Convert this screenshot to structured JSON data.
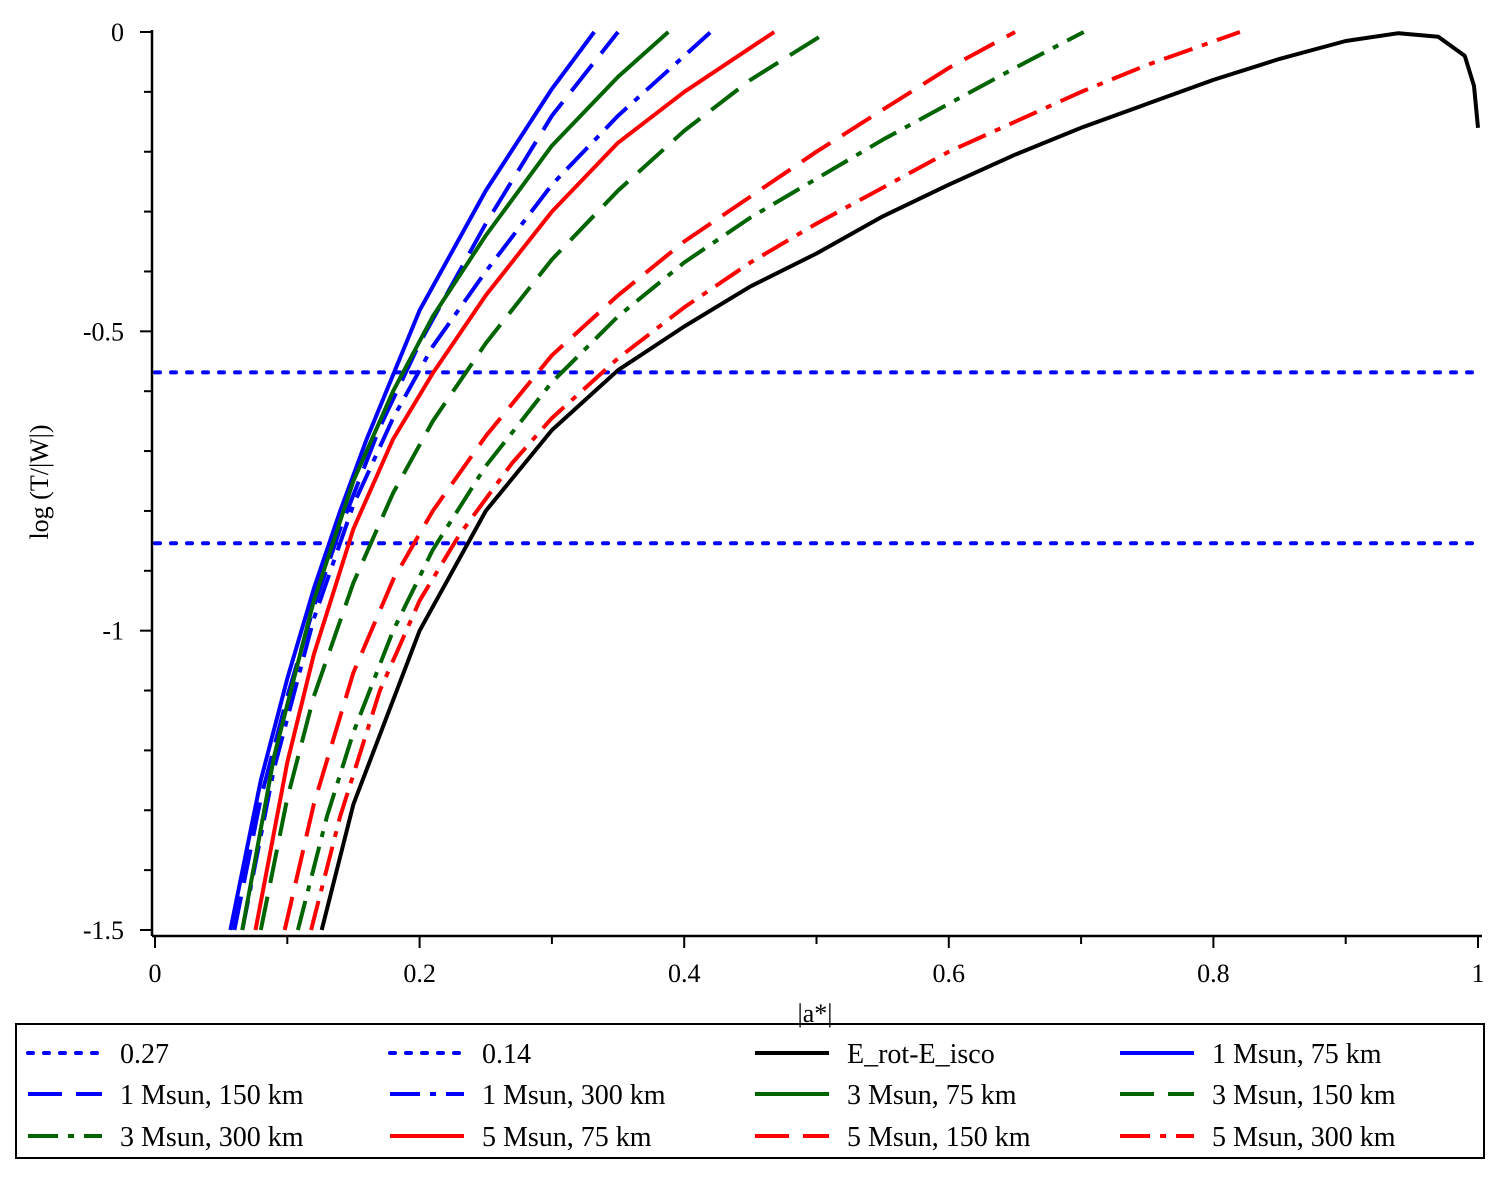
{
  "chart_data": {
    "type": "line",
    "title": "",
    "xlabel": "|a*|",
    "ylabel": "log (T/|W|)",
    "xlim": [
      0,
      1
    ],
    "ylim": [
      -1.5,
      0
    ],
    "x_ticks": [
      0,
      0.2,
      0.4,
      0.6,
      0.8,
      1
    ],
    "x_tick_labels": [
      "0",
      "0.2",
      "0.4",
      "0.6",
      "0.8",
      "1"
    ],
    "y_ticks": [
      0,
      -0.5,
      -1,
      -1.5
    ],
    "y_tick_labels": [
      "0",
      "-0.5",
      "-1",
      "-1.5"
    ],
    "grid": false,
    "legend_position": "bottom",
    "series": [
      {
        "name": "0.27",
        "color": "#0000ff",
        "dash": "dot",
        "x": [
          0,
          1
        ],
        "y": [
          -0.5686,
          -0.5686
        ]
      },
      {
        "name": "0.14",
        "color": "#0000ff",
        "dash": "dot",
        "x": [
          0,
          1
        ],
        "y": [
          -0.8539,
          -0.8539
        ]
      },
      {
        "name": "E_rot-E_isco",
        "color": "#000000",
        "dash": "solid",
        "x": [
          0.126,
          0.15,
          0.2,
          0.25,
          0.3,
          0.35,
          0.4,
          0.45,
          0.5,
          0.55,
          0.6,
          0.65,
          0.7,
          0.75,
          0.8,
          0.85,
          0.9,
          0.94,
          0.97,
          0.99,
          0.997,
          1.0
        ],
        "y": [
          -1.5,
          -1.29,
          -1.0,
          -0.8,
          -0.665,
          -0.565,
          -0.492,
          -0.425,
          -0.37,
          -0.308,
          -0.255,
          -0.205,
          -0.16,
          -0.12,
          -0.08,
          -0.045,
          -0.015,
          -0.002,
          -0.008,
          -0.04,
          -0.09,
          -0.16
        ]
      },
      {
        "name": "1 Msun, 75 km",
        "color": "#0000ff",
        "dash": "solid",
        "x": [
          0.057,
          0.08,
          0.1,
          0.12,
          0.14,
          0.16,
          0.2,
          0.25,
          0.3,
          0.332
        ],
        "y": [
          -1.5,
          -1.25,
          -1.08,
          -0.93,
          -0.8,
          -0.68,
          -0.465,
          -0.265,
          -0.095,
          0.0
        ]
      },
      {
        "name": "1 Msun, 150 km",
        "color": "#0000ff",
        "dash": "longdash",
        "x": [
          0.06,
          0.08,
          0.1,
          0.12,
          0.14,
          0.17,
          0.2,
          0.25,
          0.3,
          0.35
        ],
        "y": [
          -1.5,
          -1.28,
          -1.11,
          -0.96,
          -0.83,
          -0.66,
          -0.52,
          -0.32,
          -0.14,
          0.0
        ]
      },
      {
        "name": "1 Msun, 300 km",
        "color": "#0000ff",
        "dash": "dashdot",
        "x": [
          0.066,
          0.09,
          0.12,
          0.15,
          0.18,
          0.21,
          0.25,
          0.3,
          0.35,
          0.42
        ],
        "y": [
          -1.5,
          -1.23,
          -0.98,
          -0.79,
          -0.645,
          -0.525,
          -0.4,
          -0.255,
          -0.14,
          0.0
        ]
      },
      {
        "name": "3 Msun, 75 km",
        "color": "#006400",
        "dash": "solid",
        "x": [
          0.066,
          0.09,
          0.12,
          0.15,
          0.18,
          0.21,
          0.25,
          0.3,
          0.35,
          0.388
        ],
        "y": [
          -1.5,
          -1.21,
          -0.95,
          -0.75,
          -0.6,
          -0.475,
          -0.34,
          -0.19,
          -0.075,
          0.0
        ]
      },
      {
        "name": "3 Msun, 150 km",
        "color": "#006400",
        "dash": "longdash",
        "x": [
          0.08,
          0.1,
          0.12,
          0.15,
          0.18,
          0.21,
          0.25,
          0.3,
          0.35,
          0.4,
          0.45,
          0.508
        ],
        "y": [
          -1.5,
          -1.28,
          -1.11,
          -0.92,
          -0.77,
          -0.65,
          -0.52,
          -0.38,
          -0.265,
          -0.165,
          -0.08,
          0.0
        ]
      },
      {
        "name": "3 Msun, 300 km",
        "color": "#006400",
        "dash": "dashdot",
        "x": [
          0.108,
          0.13,
          0.15,
          0.18,
          0.21,
          0.25,
          0.3,
          0.35,
          0.4,
          0.45,
          0.5,
          0.55,
          0.6,
          0.65,
          0.702
        ],
        "y": [
          -1.5,
          -1.31,
          -1.17,
          -1.0,
          -0.865,
          -0.725,
          -0.585,
          -0.475,
          -0.385,
          -0.31,
          -0.245,
          -0.18,
          -0.12,
          -0.06,
          0.0
        ]
      },
      {
        "name": "5 Msun, 75 km",
        "color": "#ff0000",
        "dash": "solid",
        "x": [
          0.076,
          0.1,
          0.12,
          0.15,
          0.18,
          0.21,
          0.25,
          0.3,
          0.35,
          0.4,
          0.468
        ],
        "y": [
          -1.5,
          -1.22,
          -1.04,
          -0.83,
          -0.68,
          -0.57,
          -0.44,
          -0.3,
          -0.185,
          -0.1,
          0.0
        ]
      },
      {
        "name": "5 Msun, 150 km",
        "color": "#ff0000",
        "dash": "longdash",
        "x": [
          0.098,
          0.12,
          0.15,
          0.18,
          0.21,
          0.25,
          0.3,
          0.35,
          0.4,
          0.45,
          0.5,
          0.55,
          0.6,
          0.65
        ],
        "y": [
          -1.5,
          -1.29,
          -1.07,
          -0.915,
          -0.8,
          -0.675,
          -0.54,
          -0.44,
          -0.35,
          -0.275,
          -0.2,
          -0.13,
          -0.06,
          0.0
        ]
      },
      {
        "name": "5 Msun, 300 km",
        "color": "#ff0000",
        "dash": "dashdot",
        "x": [
          0.118,
          0.14,
          0.17,
          0.2,
          0.23,
          0.27,
          0.3,
          0.35,
          0.4,
          0.45,
          0.5,
          0.55,
          0.6,
          0.65,
          0.7,
          0.75,
          0.82
        ],
        "y": [
          -1.5,
          -1.31,
          -1.1,
          -0.95,
          -0.84,
          -0.72,
          -0.645,
          -0.545,
          -0.46,
          -0.385,
          -0.32,
          -0.26,
          -0.2,
          -0.15,
          -0.1,
          -0.055,
          0.0
        ]
      }
    ]
  }
}
